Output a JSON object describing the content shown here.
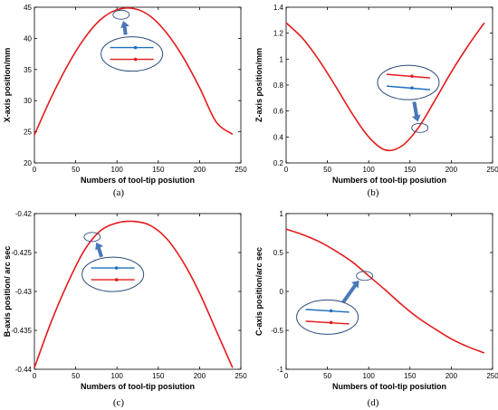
{
  "chart_data": [
    {
      "type": "line",
      "panel_label": "(a)",
      "xlabel": "Numbers of tool-tip posiution",
      "ylabel": "X-axis position/mm",
      "xlim": [
        0,
        250
      ],
      "ylim": [
        20,
        45
      ],
      "xticks": [
        "0",
        "50",
        "100",
        "150",
        "200",
        "250"
      ],
      "yticks": [
        "20",
        "25",
        "30",
        "35",
        "40",
        "45"
      ],
      "series": [
        {
          "color": "#e41a1c",
          "x": [
            0,
            20,
            40,
            60,
            80,
            100,
            120,
            140,
            160,
            180,
            200,
            220,
            240
          ],
          "y": [
            24.5,
            30.4,
            35.6,
            39.9,
            43.0,
            44.6,
            44.8,
            43.6,
            40.9,
            37.0,
            32.1,
            26.6,
            24.6
          ]
        }
      ],
      "annotation": {
        "inset": "zoom",
        "ellipse_at": [
          105,
          43.8
        ],
        "inset_center": [
          118,
          37.5
        ],
        "line_colors": [
          "#1f6fbf",
          "#e41a1c"
        ]
      }
    },
    {
      "type": "line",
      "panel_label": "(b)",
      "xlabel": "Numbers of tool-tip posiution",
      "ylabel": "Z-axis position/mm",
      "xlim": [
        0,
        250
      ],
      "ylim": [
        0.2,
        1.4
      ],
      "xticks": [
        "0",
        "50",
        "100",
        "150",
        "200",
        "250"
      ],
      "yticks": [
        "0.2",
        "0.4",
        "0.6",
        "0.8",
        "1",
        "1.2",
        "1.4"
      ],
      "series": [
        {
          "color": "#e41a1c",
          "x": [
            0,
            20,
            40,
            60,
            80,
            100,
            120,
            140,
            160,
            180,
            200,
            220,
            240
          ],
          "y": [
            1.28,
            1.16,
            0.99,
            0.79,
            0.58,
            0.4,
            0.3,
            0.33,
            0.47,
            0.68,
            0.9,
            1.1,
            1.28
          ]
        }
      ],
      "annotation": {
        "inset": "zoom",
        "ellipse_at": [
          162,
          0.47
        ],
        "inset_center": [
          148,
          0.82
        ],
        "line_colors": [
          "#e41a1c",
          "#1f6fbf"
        ]
      }
    },
    {
      "type": "line",
      "panel_label": "(c)",
      "xlabel": "Numbers of tool-tip posiution",
      "ylabel": "B-axis position/ arc sec",
      "xlim": [
        0,
        250
      ],
      "ylim": [
        -0.44,
        -0.42
      ],
      "xticks": [
        "0",
        "50",
        "100",
        "150",
        "200",
        "250"
      ],
      "yticks": [
        "-0.44",
        "-0.435",
        "-0.43",
        "-0.425",
        "-0.42"
      ],
      "series": [
        {
          "color": "#e41a1c",
          "x": [
            0,
            20,
            40,
            60,
            80,
            100,
            120,
            140,
            160,
            180,
            200,
            220,
            240
          ],
          "y": [
            -0.4398,
            -0.434,
            -0.429,
            -0.4248,
            -0.4222,
            -0.4212,
            -0.421,
            -0.4215,
            -0.4232,
            -0.4262,
            -0.4302,
            -0.435,
            -0.4398
          ]
        }
      ],
      "annotation": {
        "inset": "zoom",
        "ellipse_at": [
          70,
          -0.423
        ],
        "inset_center": [
          95,
          -0.4278
        ],
        "line_colors": [
          "#1f6fbf",
          "#e41a1c"
        ]
      }
    },
    {
      "type": "line",
      "panel_label": "(d)",
      "xlabel": "Numbers of tool-tip posiution",
      "ylabel": "C-axis position/arc sec",
      "xlim": [
        0,
        250
      ],
      "ylim": [
        -1,
        1
      ],
      "xticks": [
        "0",
        "50",
        "100",
        "150",
        "200",
        "250"
      ],
      "yticks": [
        "-1",
        "-0.5",
        "0",
        "0.5",
        "1"
      ],
      "series": [
        {
          "color": "#e41a1c",
          "x": [
            0,
            20,
            40,
            60,
            80,
            100,
            120,
            140,
            160,
            180,
            200,
            220,
            240
          ],
          "y": [
            0.8,
            0.73,
            0.64,
            0.52,
            0.38,
            0.2,
            0.02,
            -0.17,
            -0.34,
            -0.48,
            -0.61,
            -0.71,
            -0.79
          ]
        }
      ],
      "annotation": {
        "inset": "zoom",
        "ellipse_at": [
          95,
          0.2
        ],
        "inset_center": [
          50,
          -0.33
        ],
        "line_colors": [
          "#1f6fbf",
          "#e41a1c"
        ]
      }
    }
  ]
}
